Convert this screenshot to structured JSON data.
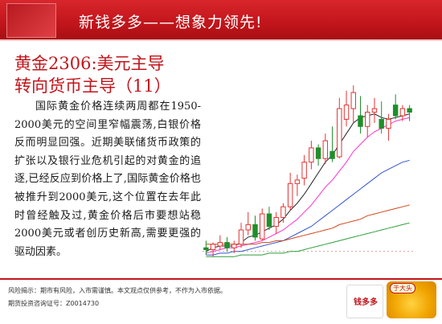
{
  "header": {
    "title": "新钱多多——想象力领先!"
  },
  "slide": {
    "title_line1": "黄金2306:美元主导",
    "title_line2": "转向货币主导（11）",
    "body": "国际黄金价格连续两周都在1950-2000美元的空间里窄幅震荡,白银价格反而明显回强。近期美联储货币政策的扩张以及银行业危机引起的对黄金的追逐,已经反应到价格上了,国际黄金价格也被推升到2000美元,这个位置在去年此时曾经触及过,黄金价格后市要想站稳2000美元或者创历史新高,需要更强的驱动因素。"
  },
  "footer": {
    "risk_notice": "风险揭示：期市有风险，入市需谨慎。本文观点仅供参考，不作为入市依据。",
    "license": "期货投资咨询证号：Z0014730",
    "badge_text": "钱多多",
    "mascot_tag": "于大头"
  },
  "colors": {
    "brand_red": "#c1151b",
    "up_candle": "#e63333",
    "down_candle": "#1f8f2a",
    "ma_short": "#222222",
    "ma_mid": "#ff33cc",
    "ma_long1": "#3355cc",
    "ma_long2": "#d0461e",
    "ma_long3": "#2e9e3a"
  },
  "chart_data": {
    "type": "candlestick",
    "title": "",
    "xlabel": "",
    "ylabel": "",
    "ylim": [
      0,
      100
    ],
    "grid": false,
    "candles": [
      {
        "o": 8,
        "h": 12,
        "l": 4,
        "c": 7
      },
      {
        "o": 7,
        "h": 11,
        "l": 3,
        "c": 10
      },
      {
        "o": 9,
        "h": 15,
        "l": 7,
        "c": 11
      },
      {
        "o": 11,
        "h": 14,
        "l": 6,
        "c": 8
      },
      {
        "o": 8,
        "h": 12,
        "l": 5,
        "c": 10
      },
      {
        "o": 10,
        "h": 22,
        "l": 8,
        "c": 18
      },
      {
        "o": 18,
        "h": 28,
        "l": 15,
        "c": 21
      },
      {
        "o": 21,
        "h": 26,
        "l": 12,
        "c": 14
      },
      {
        "o": 13,
        "h": 30,
        "l": 12,
        "c": 27
      },
      {
        "o": 27,
        "h": 31,
        "l": 18,
        "c": 20
      },
      {
        "o": 20,
        "h": 28,
        "l": 16,
        "c": 25
      },
      {
        "o": 25,
        "h": 33,
        "l": 22,
        "c": 31
      },
      {
        "o": 31,
        "h": 50,
        "l": 29,
        "c": 44
      },
      {
        "o": 44,
        "h": 49,
        "l": 37,
        "c": 46
      },
      {
        "o": 47,
        "h": 60,
        "l": 43,
        "c": 56
      },
      {
        "o": 56,
        "h": 68,
        "l": 52,
        "c": 64
      },
      {
        "o": 64,
        "h": 66,
        "l": 54,
        "c": 58
      },
      {
        "o": 58,
        "h": 72,
        "l": 55,
        "c": 68
      },
      {
        "o": 62,
        "h": 76,
        "l": 56,
        "c": 58
      },
      {
        "o": 59,
        "h": 92,
        "l": 58,
        "c": 86
      },
      {
        "o": 80,
        "h": 96,
        "l": 76,
        "c": 88
      },
      {
        "o": 86,
        "h": 99,
        "l": 78,
        "c": 95
      },
      {
        "o": 82,
        "h": 93,
        "l": 72,
        "c": 76
      },
      {
        "o": 76,
        "h": 88,
        "l": 70,
        "c": 84
      },
      {
        "o": 84,
        "h": 92,
        "l": 78,
        "c": 86
      },
      {
        "o": 80,
        "h": 90,
        "l": 72,
        "c": 75
      },
      {
        "o": 75,
        "h": 83,
        "l": 68,
        "c": 80
      },
      {
        "o": 88,
        "h": 94,
        "l": 80,
        "c": 82
      },
      {
        "o": 82,
        "h": 88,
        "l": 79,
        "c": 86
      },
      {
        "o": 86,
        "h": 88,
        "l": 79,
        "c": 84
      }
    ],
    "series": [
      {
        "type": "ma",
        "color": "#222222",
        "values": [
          6,
          8,
          9,
          9,
          9,
          11,
          14,
          15,
          17,
          19,
          21,
          24,
          29,
          33,
          38,
          44,
          50,
          56,
          60,
          66,
          72,
          78,
          81,
          82,
          83,
          81,
          80,
          81,
          82,
          83
        ]
      },
      {
        "type": "ma",
        "color": "#ff33cc",
        "values": [
          5,
          6,
          7,
          8,
          8,
          9,
          10,
          11,
          12,
          14,
          16,
          18,
          21,
          24,
          28,
          32,
          37,
          42,
          46,
          51,
          56,
          62,
          66,
          70,
          73,
          75,
          77,
          79,
          80,
          81
        ]
      },
      {
        "type": "ma",
        "color": "#3355cc",
        "values": [
          4,
          4,
          5,
          5,
          6,
          6,
          7,
          8,
          9,
          10,
          11,
          12,
          14,
          16,
          18,
          20,
          23,
          26,
          29,
          32,
          35,
          38,
          41,
          44,
          47,
          50,
          52,
          54,
          56,
          57
        ]
      },
      {
        "type": "ma",
        "color": "#d0461e",
        "values": [
          10,
          10,
          10,
          10,
          10,
          10,
          10,
          10,
          11,
          11,
          12,
          12,
          13,
          14,
          15,
          16,
          17,
          18,
          19,
          21,
          22,
          23,
          24,
          26,
          27,
          28,
          29,
          30,
          31,
          32
        ]
      },
      {
        "type": "ma",
        "color": "#2e9e3a",
        "values": [
          3,
          3,
          3,
          3,
          3,
          4,
          4,
          4,
          4,
          5,
          5,
          5,
          6,
          6,
          7,
          8,
          9,
          10,
          11,
          12,
          13,
          14,
          15,
          16,
          17,
          18,
          19,
          20,
          21,
          22
        ]
      }
    ]
  }
}
